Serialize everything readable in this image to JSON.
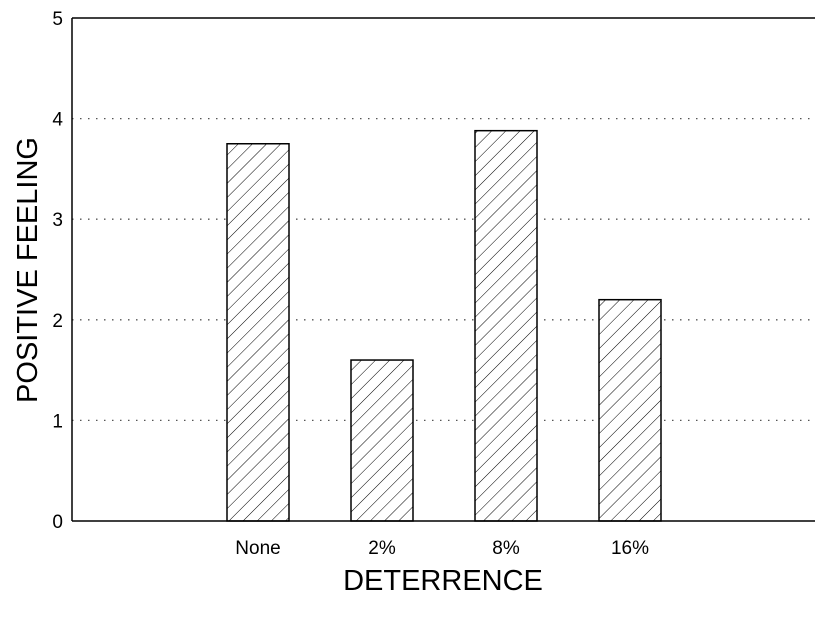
{
  "chart_data": {
    "type": "bar",
    "categories": [
      "None",
      "2%",
      "8%",
      "16%"
    ],
    "values": [
      3.75,
      1.6,
      3.88,
      2.2
    ],
    "xlabel": "DETERRENCE",
    "ylabel": "POSITIVE FEELING",
    "ylim": [
      0,
      5
    ],
    "yticks": [
      "0",
      "1",
      "2",
      "3",
      "4",
      "5"
    ],
    "grid": true,
    "grid_style": "dotted",
    "bar_fill": "diagonal hatch"
  }
}
